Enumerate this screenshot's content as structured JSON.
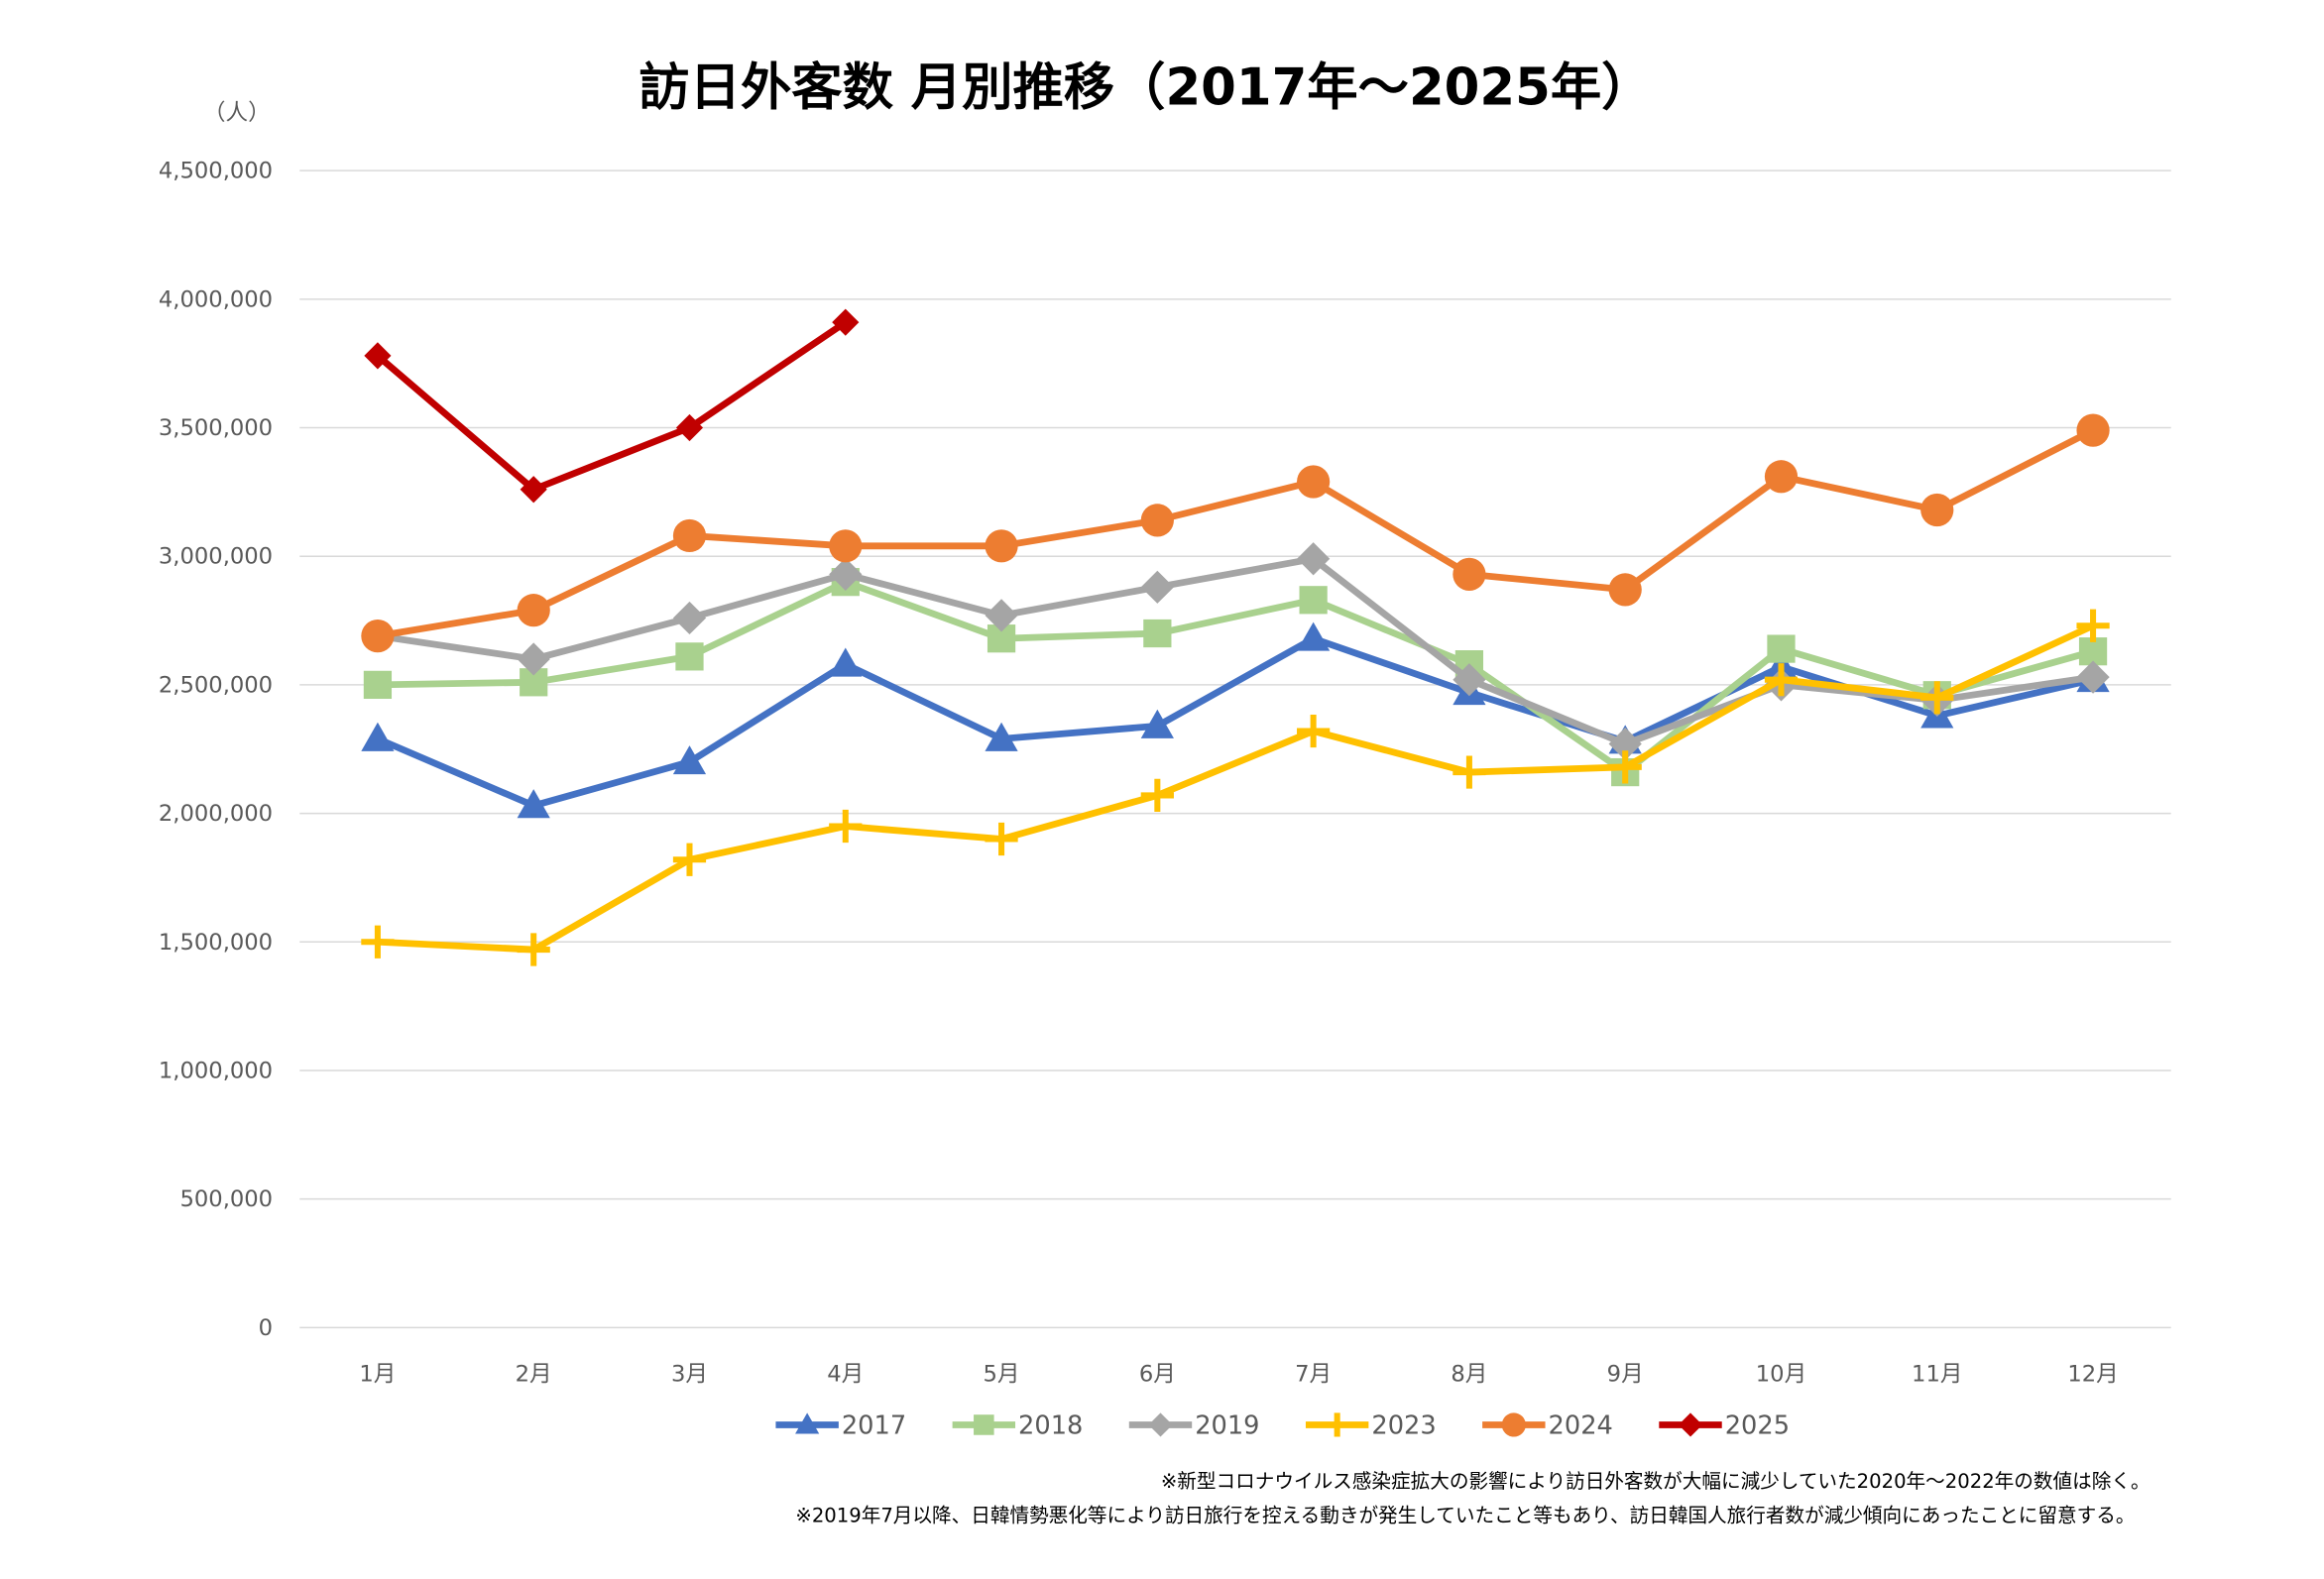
{
  "chart_data": {
    "type": "line",
    "title": "訪日外客数 月別推移（2017年～2025年）",
    "y_unit": "（人）",
    "categories": [
      "1月",
      "2月",
      "3月",
      "4月",
      "5月",
      "6月",
      "7月",
      "8月",
      "9月",
      "10月",
      "11月",
      "12月"
    ],
    "series": [
      {
        "name": "2017",
        "color": "#4472c4",
        "marker": "triangle",
        "values": [
          2290000,
          2030000,
          2200000,
          2580000,
          2290000,
          2340000,
          2680000,
          2470000,
          2280000,
          2570000,
          2380000,
          2520000
        ]
      },
      {
        "name": "2018",
        "color": "#a9d18e",
        "marker": "square",
        "values": [
          2500000,
          2510000,
          2610000,
          2900000,
          2680000,
          2700000,
          2830000,
          2580000,
          2160000,
          2640000,
          2460000,
          2630000
        ]
      },
      {
        "name": "2019",
        "color": "#a5a5a5",
        "marker": "diamond",
        "values": [
          2690000,
          2600000,
          2760000,
          2930000,
          2770000,
          2880000,
          2990000,
          2520000,
          2270000,
          2500000,
          2440000,
          2530000
        ]
      },
      {
        "name": "2023",
        "color": "#ffc000",
        "marker": "plus",
        "values": [
          1500000,
          1470000,
          1820000,
          1950000,
          1900000,
          2070000,
          2320000,
          2160000,
          2180000,
          2520000,
          2450000,
          2730000
        ]
      },
      {
        "name": "2024",
        "color": "#ed7d31",
        "marker": "circle",
        "values": [
          2690000,
          2790000,
          3080000,
          3040000,
          3040000,
          3140000,
          3290000,
          2930000,
          2870000,
          3310000,
          3180000,
          3490000
        ]
      },
      {
        "name": "2025",
        "color": "#c00000",
        "marker": "diamond",
        "values": [
          3780000,
          3260000,
          3500000,
          3910000,
          null,
          null,
          null,
          null,
          null,
          null,
          null,
          null
        ]
      }
    ],
    "ylim": [
      0,
      4500000
    ],
    "yticks": [
      0,
      {
        "value": 500000,
        "label": "500,000"
      },
      {
        "value": 1000000,
        "label": "1,000,000"
      },
      {
        "value": 1500000,
        "label": "1,500,000"
      },
      {
        "value": 2000000,
        "label": "2,000,000"
      },
      {
        "value": 2500000,
        "label": "2,500,000"
      },
      {
        "value": 3000000,
        "label": "3,000,000"
      },
      {
        "value": 3500000,
        "label": "3,500,000"
      },
      {
        "value": 4000000,
        "label": "4,000,000"
      },
      {
        "value": 4500000,
        "label": "4,500,000"
      }
    ],
    "grid": true,
    "legend": "bottom",
    "notes": [
      "※新型コロナウイルス感染症拡大の影響により訪日外客数が大幅に減少していた2020年～2022年の数値は除く。",
      "※2019年7月以降、日韓情勢悪化等により訪日旅行を控える動きが発生していたこと等もあり、訪日韓国人旅行者数が減少傾向にあったことに留意する。"
    ]
  }
}
